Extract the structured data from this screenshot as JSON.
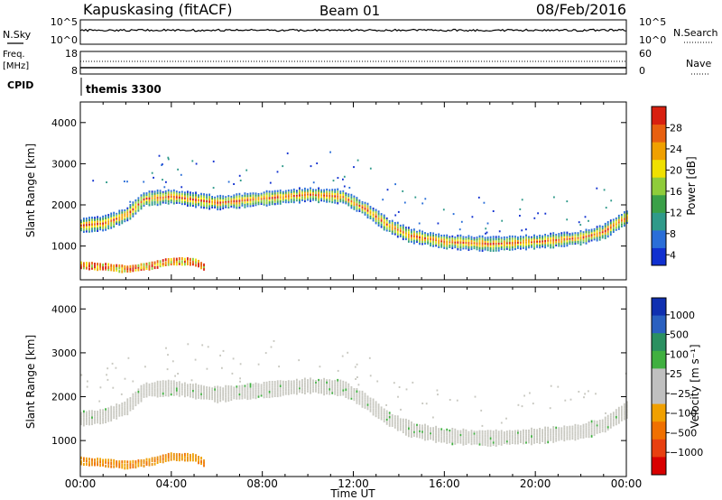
{
  "header": {
    "station": "Kapuskasing (fitACF)",
    "beam": "Beam 01",
    "date": "08/Feb/2016"
  },
  "noise_panel": {
    "left_label": "N.Sky",
    "right_label": "N.Search",
    "left_ticks": [
      "10^5",
      "10^0"
    ],
    "right_ticks": [
      "10^5",
      "10^0"
    ]
  },
  "freq_panel": {
    "left_label_1": "Freq.",
    "left_label_2": "[MHz]",
    "left_ticks": [
      "18",
      "8"
    ],
    "right_label": "Nave",
    "right_ticks": [
      "60",
      "0"
    ]
  },
  "cpid": {
    "label": "CPID",
    "value": "themis 3300"
  },
  "time_axis": {
    "ticks": [
      "00:00",
      "04:00",
      "08:00",
      "12:00",
      "16:00",
      "20:00",
      "00:00"
    ],
    "label": "Time UT"
  },
  "range_axis": {
    "label": "Slant Range [km]",
    "ticks": [
      "1000",
      "2000",
      "3000",
      "4000"
    ]
  },
  "colors": {
    "background": "#ffffff",
    "velocity_ground_scatter": "#c8c8c0",
    "power_scale": [
      "#1030d0",
      "#2a6ed8",
      "#2f9a8a",
      "#3aa048",
      "#8fcc3a",
      "#f0e000",
      "#f0a000",
      "#e86010",
      "#d82010"
    ],
    "velocity_scale": [
      "#1030b0",
      "#2a60c0",
      "#2a9060",
      "#40b040",
      "#c0c0c0",
      "#c0c0c0",
      "#f0a000",
      "#f07000",
      "#e84010",
      "#d80000"
    ]
  },
  "power_colorbar": {
    "label": "Power [dB]",
    "ticks": [
      "4",
      "8",
      "12",
      "16",
      "20",
      "24",
      "28"
    ]
  },
  "velocity_colorbar": {
    "label": "Velocity [m s⁻¹]",
    "ticks": [
      "1000",
      "500",
      "100",
      "25",
      "−25",
      "−100",
      "−500",
      "−1000"
    ]
  },
  "chart_data": {
    "type": "heatmap",
    "x_unit": "UT hours",
    "xlim": [
      0,
      24
    ],
    "ylim": [
      180,
      4500
    ],
    "panels": [
      {
        "name": "Power",
        "scale": [
          2,
          32
        ],
        "features": [
          {
            "band": "main scatter band",
            "x": [
              0.0,
              1.0,
              2.0,
              2.8,
              4.0,
              6.0,
              8.0,
              10.0,
              11.5,
              12.5,
              13.5,
              14.5,
              16.0,
              18.0,
              20.0,
              22.0,
              23.0,
              24.0
            ],
            "y": [
              1500,
              1550,
              1750,
              2150,
              2200,
              2050,
              2150,
              2250,
              2200,
              1900,
              1500,
              1250,
              1100,
              1050,
              1100,
              1200,
              1350,
              1700
            ],
            "peak_value": 24
          },
          {
            "band": "near-range scatter",
            "x": [
              0.0,
              1.0,
              2.0,
              3.0,
              4.0,
              5.0,
              5.5
            ],
            "y": [
              520,
              480,
              430,
              500,
              620,
              600,
              450
            ],
            "peak_value": 28
          }
        ]
      },
      {
        "name": "Velocity",
        "scale": [
          -1000,
          1000
        ],
        "features": [
          {
            "band": "main scatter band (ground scatter)",
            "x": [
              0.0,
              1.0,
              2.0,
              2.8,
              4.0,
              6.0,
              8.0,
              10.0,
              11.5,
              12.5,
              13.5,
              14.5,
              16.0,
              18.0,
              20.0,
              22.0,
              23.0,
              24.0
            ],
            "y": [
              1500,
              1550,
              1750,
              2150,
              2200,
              2050,
              2150,
              2250,
              2200,
              1900,
              1500,
              1250,
              1100,
              1050,
              1100,
              1200,
              1350,
              1700
            ],
            "value": 0
          },
          {
            "band": "near-range scatter",
            "x": [
              0.0,
              1.0,
              2.0,
              3.0,
              4.0,
              5.0,
              5.5
            ],
            "y": [
              520,
              480,
              430,
              500,
              620,
              600,
              450
            ],
            "value": -200
          }
        ]
      }
    ]
  }
}
